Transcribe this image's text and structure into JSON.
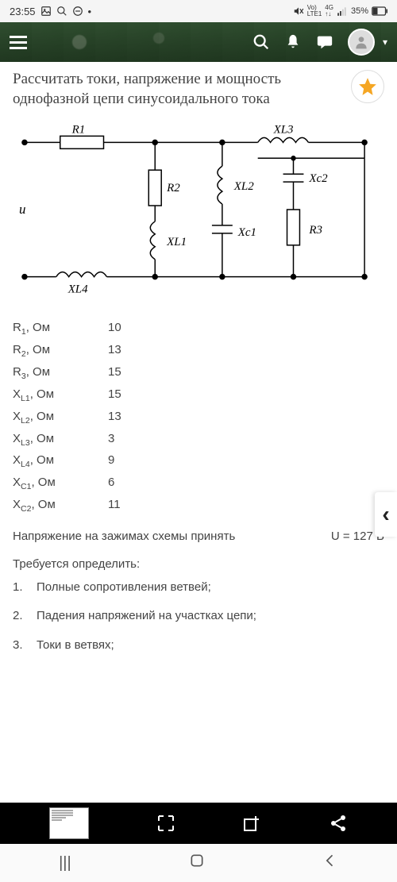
{
  "status": {
    "time": "23:55",
    "signal_text": "LTE1",
    "net_text": "4G",
    "battery": "35%"
  },
  "page": {
    "title": "Рассчитать токи, напряжение и мощность однофазной цепи синусоидального тока"
  },
  "circuit_labels": {
    "R1": "R1",
    "R2": "R2",
    "R3": "R3",
    "XL1": "XL1",
    "XL2": "XL2",
    "XL3": "XL3",
    "XL4": "XL4",
    "XC1": "Xc1",
    "XC2": "Xc2",
    "U": "u"
  },
  "params": [
    {
      "label": "R<sub>1</sub>, Ом",
      "value": "10"
    },
    {
      "label": "R<sub>2</sub>, Ом",
      "value": "13"
    },
    {
      "label": "R<sub>3</sub>, Ом",
      "value": "15"
    },
    {
      "label": "X<sub>L1</sub>, Ом",
      "value": "15"
    },
    {
      "label": "X<sub>L2</sub>, Ом",
      "value": "13"
    },
    {
      "label": "X<sub>L3</sub>, Ом",
      "value": "3"
    },
    {
      "label": "X<sub>L4</sub>, Ом",
      "value": "9"
    },
    {
      "label": "X<sub>C1</sub>, Ом",
      "value": "6"
    },
    {
      "label": "X<sub>C2</sub>, Ом",
      "value": "11"
    }
  ],
  "voltage_note": {
    "text": "Напряжение на зажимах схемы принять",
    "value": "U = 127 В"
  },
  "requirements": {
    "heading": "Требуется определить:",
    "items": [
      {
        "num": "1.",
        "text": "Полные сопротивления ветвей;"
      },
      {
        "num": "2.",
        "text": "Падения напряжений на участках цепи;"
      },
      {
        "num": "3.",
        "text": "Токи в ветвях;"
      }
    ]
  },
  "colors": {
    "header_bg": "#2a4a2a",
    "text": "#444444",
    "star": "#f5a623",
    "bottom_bar": "#000000"
  }
}
